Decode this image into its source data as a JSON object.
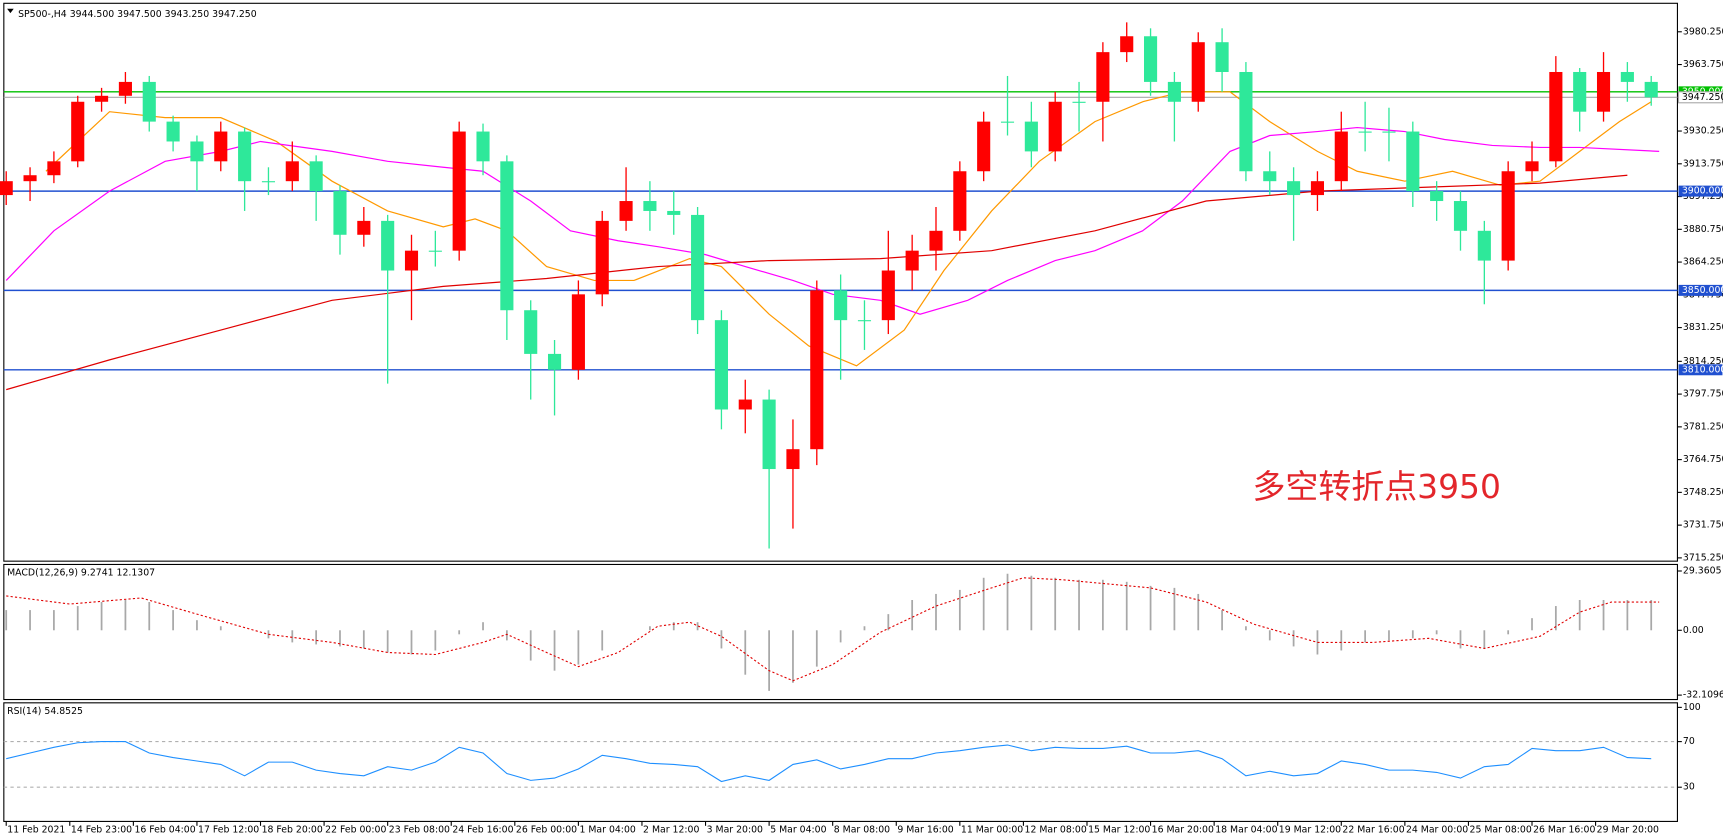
{
  "chart_data": [
    {
      "type": "candlestick",
      "title": "SP500-,H4  3944.500 3947.500 3943.250 3947.250",
      "x": [
        0,
        3,
        6,
        9,
        12,
        15,
        18,
        21,
        24,
        27,
        30,
        33,
        36,
        39,
        42,
        45,
        48,
        51,
        54,
        57,
        60,
        63,
        66,
        69,
        72,
        75,
        78,
        81,
        84,
        87,
        90,
        93,
        96,
        99,
        102,
        105,
        108,
        111,
        114,
        117,
        120,
        123,
        126,
        129,
        132,
        135,
        138,
        141,
        144,
        147,
        150,
        153,
        156,
        159,
        162,
        165,
        168,
        171,
        174,
        177,
        180,
        183,
        186,
        189,
        192,
        195,
        198,
        201,
        204,
        207
      ],
      "open": [
        3898,
        3905,
        3908,
        3915,
        3945,
        3948,
        3955,
        3935,
        3925,
        3915,
        3930,
        3905,
        3905,
        3915,
        3900,
        3878,
        3885,
        3860,
        3870,
        3870,
        3930,
        3915,
        3840,
        3818,
        3810,
        3848,
        3885,
        3895,
        3890,
        3888,
        3835,
        3790,
        3795,
        3760,
        3770,
        3850,
        3835,
        3835,
        3860,
        3870,
        3880,
        3910,
        3935,
        3935,
        3920,
        3945,
        3945,
        3970,
        3978,
        3955,
        3945,
        3975,
        3960,
        3910,
        3905,
        3898,
        3905,
        3930,
        3930,
        3930,
        3900,
        3895,
        3880,
        3865,
        3910,
        3915,
        3960,
        3940,
        3960,
        3955
      ],
      "high": [
        3910,
        3912,
        3920,
        3948,
        3952,
        3960,
        3958,
        3938,
        3928,
        3935,
        3932,
        3912,
        3925,
        3918,
        3903,
        3892,
        3888,
        3878,
        3880,
        3935,
        3934,
        3918,
        3845,
        3825,
        3855,
        3890,
        3912,
        3905,
        3900,
        3892,
        3840,
        3805,
        3800,
        3785,
        3855,
        3858,
        3845,
        3880,
        3878,
        3892,
        3915,
        3940,
        3958,
        3945,
        3950,
        3955,
        3975,
        3985,
        3982,
        3960,
        3980,
        3982,
        3965,
        3920,
        3912,
        3910,
        3940,
        3945,
        3942,
        3935,
        3905,
        3900,
        3885,
        3915,
        3925,
        3968,
        3962,
        3970,
        3965,
        3958
      ],
      "low": [
        3893,
        3895,
        3904,
        3912,
        3940,
        3944,
        3930,
        3920,
        3900,
        3910,
        3890,
        3898,
        3900,
        3885,
        3868,
        3872,
        3803,
        3835,
        3862,
        3865,
        3908,
        3825,
        3795,
        3787,
        3805,
        3842,
        3880,
        3880,
        3878,
        3828,
        3780,
        3778,
        3720,
        3730,
        3762,
        3805,
        3820,
        3828,
        3850,
        3860,
        3875,
        3905,
        3928,
        3912,
        3915,
        3930,
        3925,
        3965,
        3948,
        3925,
        3940,
        3950,
        3905,
        3898,
        3875,
        3890,
        3900,
        3920,
        3915,
        3892,
        3885,
        3870,
        3843,
        3860,
        3905,
        3912,
        3930,
        3935,
        3945,
        3943
      ],
      "close": [
        3905,
        3908,
        3915,
        3945,
        3948,
        3955,
        3935,
        3925,
        3915,
        3930,
        3905,
        3905,
        3915,
        3900,
        3878,
        3885,
        3860,
        3870,
        3870,
        3930,
        3915,
        3840,
        3818,
        3810,
        3848,
        3885,
        3895,
        3890,
        3888,
        3835,
        3790,
        3795,
        3760,
        3770,
        3850,
        3835,
        3835,
        3860,
        3870,
        3880,
        3910,
        3935,
        3935,
        3920,
        3945,
        3945,
        3970,
        3978,
        3955,
        3945,
        3975,
        3960,
        3910,
        3905,
        3898,
        3905,
        3930,
        3930,
        3930,
        3900,
        3895,
        3880,
        3865,
        3910,
        3915,
        3960,
        3940,
        3960,
        3955,
        3947.25
      ],
      "up_color": "#ff0000",
      "down_color": "#2ee89a",
      "moving_averages": [
        {
          "color": "#ff9900",
          "x": [
            5,
            13,
            20,
            27,
            34,
            41,
            48,
            55,
            59,
            63,
            68,
            74,
            79,
            86,
            90,
            96,
            101,
            107,
            113,
            118,
            124,
            130,
            137,
            143,
            148,
            154,
            159,
            165,
            170,
            176,
            182,
            188,
            193,
            198,
            203,
            207
          ],
          "values": [
            3910,
            3940,
            3937,
            3937,
            3925,
            3905,
            3890,
            3882,
            3886,
            3880,
            3862,
            3855,
            3855,
            3866,
            3862,
            3838,
            3822,
            3812,
            3830,
            3860,
            3890,
            3915,
            3935,
            3945,
            3950,
            3950,
            3935,
            3920,
            3910,
            3905,
            3910,
            3903,
            3905,
            3920,
            3935,
            3945
          ]
        },
        {
          "color": "#ff00ff",
          "x": [
            0,
            6,
            13,
            20,
            27,
            32,
            41,
            48,
            55,
            60,
            66,
            71,
            77,
            82,
            88,
            93,
            99,
            104,
            110,
            115,
            121,
            126,
            132,
            137,
            143,
            148,
            154,
            159,
            165,
            170,
            176,
            181,
            187,
            193,
            198,
            208
          ],
          "values": [
            3855,
            3880,
            3900,
            3915,
            3920,
            3925,
            3920,
            3915,
            3912,
            3910,
            3895,
            3880,
            3875,
            3872,
            3868,
            3862,
            3855,
            3848,
            3845,
            3838,
            3845,
            3855,
            3865,
            3870,
            3880,
            3895,
            3920,
            3928,
            3930,
            3932,
            3930,
            3926,
            3923,
            3922,
            3922,
            3920
          ]
        },
        {
          "color": "#e00000",
          "x": [
            0,
            13,
            27,
            41,
            55,
            68,
            82,
            96,
            110,
            124,
            137,
            151,
            165,
            179,
            193,
            204
          ],
          "values": [
            3800,
            3815,
            3830,
            3845,
            3852,
            3856,
            3862,
            3865,
            3866,
            3870,
            3880,
            3895,
            3900,
            3902,
            3904,
            3908
          ]
        }
      ],
      "levels": [
        {
          "value": 3950,
          "label": "3950.000",
          "color": "#00c000"
        },
        {
          "value": 3900,
          "label": "3900.000",
          "color": "#2050d0"
        },
        {
          "value": 3850,
          "label": "3850.000",
          "color": "#2050d0"
        },
        {
          "value": 3810,
          "label": "3810.000",
          "color": "#2050d0"
        }
      ],
      "last_price": {
        "value": 3947.25,
        "label": "3947.250",
        "color": "#a8a8a8"
      },
      "annotation": {
        "text": "多空转折点3950",
        "color": "#e3262b"
      },
      "xlim": [
        -0.3,
        210.3
      ],
      "ylim": [
        3713.6,
        3994.6
      ],
      "yticks": [
        {
          "value": 3980.25,
          "label": "3980.250"
        },
        {
          "value": 3963.75,
          "label": "3963.750"
        },
        {
          "value": 3930.25,
          "label": "3930.250"
        },
        {
          "value": 3913.75,
          "label": "3913.750"
        },
        {
          "value": 3897.25,
          "label": "3897.250"
        },
        {
          "value": 3880.75,
          "label": "3880.750"
        },
        {
          "value": 3864.25,
          "label": "3864.250"
        },
        {
          "value": 3847.75,
          "label": "3847.750"
        },
        {
          "value": 3831.25,
          "label": "3831.250"
        },
        {
          "value": 3814.25,
          "label": "3814.250"
        },
        {
          "value": 3797.75,
          "label": "3797.750"
        },
        {
          "value": 3781.25,
          "label": "3781.250"
        },
        {
          "value": 3764.75,
          "label": "3764.750"
        },
        {
          "value": 3748.25,
          "label": "3748.250"
        },
        {
          "value": 3731.75,
          "label": "3731.750"
        },
        {
          "value": 3715.25,
          "label": "3715.250"
        }
      ],
      "xticks": [
        {
          "value": 0,
          "label": "11 Feb 2021"
        },
        {
          "value": 8,
          "label": "14 Feb 23:00"
        },
        {
          "value": 16,
          "label": "16 Feb 04:00"
        },
        {
          "value": 24,
          "label": "17 Feb 12:00"
        },
        {
          "value": 32,
          "label": "18 Feb 20:00"
        },
        {
          "value": 40,
          "label": "22 Feb 00:00"
        },
        {
          "value": 48,
          "label": "23 Feb 08:00"
        },
        {
          "value": 56,
          "label": "24 Feb 16:00"
        },
        {
          "value": 64,
          "label": "26 Feb 00:00"
        },
        {
          "value": 72,
          "label": "1 Mar 04:00"
        },
        {
          "value": 80,
          "label": "2 Mar 12:00"
        },
        {
          "value": 88,
          "label": "3 Mar 20:00"
        },
        {
          "value": 96,
          "label": "5 Mar 04:00"
        },
        {
          "value": 104,
          "label": "8 Mar 08:00"
        },
        {
          "value": 112,
          "label": "9 Mar 16:00"
        },
        {
          "value": 120,
          "label": "11 Mar 00:00"
        },
        {
          "value": 128,
          "label": "12 Mar 08:00"
        },
        {
          "value": 136,
          "label": "15 Mar 12:00"
        },
        {
          "value": 144,
          "label": "16 Mar 20:00"
        },
        {
          "value": 152,
          "label": "18 Mar 04:00"
        },
        {
          "value": 160,
          "label": "19 Mar 12:00"
        },
        {
          "value": 168,
          "label": "22 Mar 16:00"
        },
        {
          "value": 176,
          "label": "24 Mar 00:00"
        },
        {
          "value": 184,
          "label": "25 Mar 08:00"
        },
        {
          "value": 192,
          "label": "26 Mar 16:00"
        },
        {
          "value": 200,
          "label": "29 Mar 20:00"
        }
      ]
    },
    {
      "type": "macd",
      "title": "MACD(12,26,9) 9.2741 12.1307",
      "x": [
        0,
        3,
        6,
        9,
        12,
        15,
        18,
        21,
        24,
        27,
        30,
        33,
        36,
        39,
        42,
        45,
        48,
        51,
        54,
        57,
        60,
        63,
        66,
        69,
        72,
        75,
        78,
        81,
        84,
        87,
        90,
        93,
        96,
        99,
        102,
        105,
        108,
        111,
        114,
        117,
        120,
        123,
        126,
        129,
        132,
        135,
        138,
        141,
        144,
        147,
        150,
        153,
        156,
        159,
        162,
        165,
        168,
        171,
        174,
        177,
        180,
        183,
        186,
        189,
        192,
        195,
        198,
        201,
        204,
        207
      ],
      "values": [
        10,
        10,
        10,
        12,
        14,
        15,
        14,
        10,
        5,
        2,
        0,
        -4,
        -6,
        -7,
        -8,
        -9,
        -11,
        -12,
        -10,
        -2,
        4,
        -5,
        -15,
        -20,
        -17,
        -10,
        0,
        2,
        4,
        4,
        -9,
        -22,
        -30,
        -26,
        -18,
        -6,
        2,
        8,
        15,
        18,
        20,
        26,
        28,
        27,
        26,
        25,
        25,
        24,
        22,
        21,
        18,
        10,
        2,
        -5,
        -8,
        -12,
        -10,
        -6,
        -5,
        -4,
        -2,
        -9,
        -9,
        -2,
        6,
        12,
        15,
        15,
        15,
        15
      ],
      "color": "#a8a8a8",
      "signal": {
        "color": "#e00000",
        "x": [
          0,
          8,
          17,
          24,
          33,
          41,
          48,
          54,
          60,
          63,
          68,
          72,
          77,
          82,
          86,
          90,
          96,
          99,
          104,
          110,
          117,
          124,
          128,
          133,
          144,
          151,
          157,
          165,
          172,
          179,
          186,
          193,
          198,
          202,
          208
        ],
        "values": [
          17,
          13,
          16,
          8,
          -2,
          -6,
          -11,
          -12,
          -6,
          -2,
          -11,
          -18,
          -11,
          2,
          4,
          -3,
          -20,
          -25,
          -17,
          -1,
          12,
          21,
          26,
          25,
          21,
          14,
          3,
          -6,
          -6,
          -4,
          -9,
          -3,
          9,
          14,
          14
        ]
      },
      "xlim": [
        -0.3,
        210.3
      ],
      "ylim": [
        -34.3,
        32.6
      ],
      "yticks": [
        29.3605,
        {
          "value": 0,
          "label": "0.00"
        },
        -32.1096
      ]
    },
    {
      "type": "line",
      "title": "RSI(14) 54.8525",
      "x": [
        0,
        3,
        6,
        9,
        12,
        15,
        18,
        21,
        24,
        27,
        30,
        33,
        36,
        39,
        42,
        45,
        48,
        51,
        54,
        57,
        60,
        63,
        66,
        69,
        72,
        75,
        78,
        81,
        84,
        87,
        90,
        93,
        96,
        99,
        102,
        105,
        108,
        111,
        114,
        117,
        120,
        123,
        126,
        129,
        132,
        135,
        138,
        141,
        144,
        147,
        150,
        153,
        156,
        159,
        162,
        165,
        168,
        171,
        174,
        177,
        180,
        183,
        186,
        189,
        192,
        195,
        198,
        201,
        204,
        207
      ],
      "values": [
        55,
        60,
        65,
        69,
        70,
        70,
        60,
        56,
        53,
        50,
        40,
        52,
        52,
        45,
        42,
        40,
        48,
        45,
        52,
        65,
        60,
        42,
        36,
        38,
        46,
        58,
        55,
        51,
        50,
        48,
        35,
        40,
        36,
        50,
        54,
        46,
        50,
        55,
        55,
        60,
        62,
        65,
        67,
        62,
        65,
        64,
        64,
        66,
        60,
        60,
        62,
        55,
        40,
        44,
        40,
        42,
        53,
        50,
        45,
        45,
        43,
        38,
        48,
        50,
        64,
        62,
        62,
        65,
        56,
        55
      ],
      "color": "#1e8fff",
      "levels": [
        70,
        30
      ],
      "xlim": [
        -0.3,
        210.3
      ],
      "ylim": [
        0,
        104
      ],
      "yticks": [
        100,
        70,
        30
      ]
    }
  ]
}
